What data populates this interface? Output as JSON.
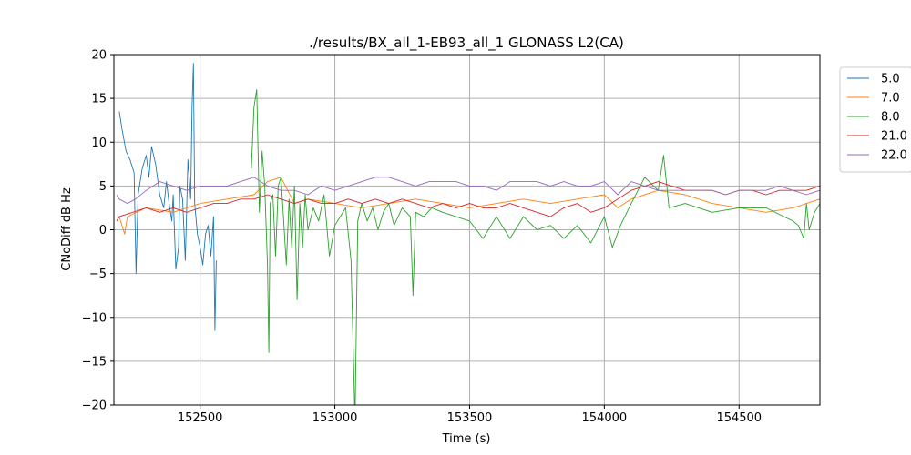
{
  "chart_data": {
    "type": "line",
    "title": "./results/BX_all_1-EB93_all_1 GLONASS L2(CA)",
    "xlabel": "Time (s)",
    "ylabel": "CNoDiff dB Hz",
    "xlim": [
      152180,
      154800
    ],
    "ylim": [
      -20,
      20
    ],
    "x_ticks": [
      152500,
      153000,
      153500,
      154000,
      154500
    ],
    "y_ticks": [
      -20,
      -15,
      -10,
      -5,
      0,
      5,
      10,
      15,
      20
    ],
    "x_tick_labels": [
      "152500",
      "153000",
      "153500",
      "154000",
      "154500"
    ],
    "y_tick_labels": [
      "−20",
      "−15",
      "−10",
      "−5",
      "0",
      "5",
      "10",
      "15",
      "20"
    ],
    "grid": true,
    "legend_position": "outside-top-right",
    "series": [
      {
        "name": "5.0",
        "color": "#1f77b4",
        "x": [
          152200,
          152210,
          152225,
          152240,
          152255,
          152262,
          152270,
          152285,
          152300,
          152310,
          152320,
          152335,
          152350,
          152365,
          152375,
          152385,
          152395,
          152400,
          152410,
          152420,
          152425,
          152435,
          152445,
          152455,
          152465,
          152470,
          152475,
          152480,
          152490,
          152500,
          152510,
          152520,
          152530,
          152540,
          152550,
          152555,
          152560
        ],
        "y": [
          13.5,
          11.5,
          9.0,
          8.0,
          6.5,
          -5.0,
          4.0,
          7.0,
          8.5,
          6.0,
          9.5,
          7.5,
          4.0,
          2.5,
          5.5,
          3.0,
          1.0,
          4.0,
          -4.5,
          -2.0,
          5.0,
          3.5,
          -3.5,
          8.0,
          3.5,
          14.0,
          19.0,
          3.0,
          -0.5,
          -2.0,
          -4.0,
          -0.5,
          0.5,
          -3.0,
          1.5,
          -11.5,
          -3.5
        ]
      },
      {
        "name": "7.0",
        "color": "#ff7f0e",
        "x": [
          152190,
          152200,
          152210,
          152220,
          152230,
          152300,
          152400,
          152500,
          152600,
          152700,
          152750,
          152800,
          152850,
          152900,
          153000,
          153100,
          153200,
          153300,
          153400,
          153500,
          153600,
          153700,
          153800,
          153900,
          154000,
          154050,
          154100,
          154200,
          154300,
          154400,
          154500,
          154600,
          154700,
          154800
        ],
        "y": [
          1.0,
          1.5,
          0.5,
          -0.5,
          1.5,
          2.5,
          2.0,
          3.0,
          3.5,
          4.0,
          5.5,
          6.0,
          3.0,
          3.5,
          3.0,
          2.5,
          3.0,
          3.5,
          3.0,
          2.5,
          3.0,
          3.5,
          3.0,
          3.5,
          4.0,
          2.5,
          3.5,
          4.5,
          4.0,
          3.0,
          2.5,
          2.0,
          2.5,
          3.5
        ]
      },
      {
        "name": "8.0",
        "color": "#2ca02c",
        "x": [
          152690,
          152700,
          152710,
          152720,
          152730,
          152740,
          152750,
          152755,
          152760,
          152770,
          152780,
          152790,
          152800,
          152810,
          152820,
          152830,
          152840,
          152850,
          152860,
          152870,
          152880,
          152890,
          152900,
          152920,
          152940,
          152960,
          152980,
          153000,
          153020,
          153040,
          153060,
          153075,
          153085,
          153100,
          153120,
          153140,
          153160,
          153180,
          153200,
          153220,
          153250,
          153280,
          153290,
          153300,
          153330,
          153360,
          153400,
          153450,
          153500,
          153550,
          153600,
          153650,
          153700,
          153750,
          153800,
          153850,
          153900,
          153950,
          154000,
          154030,
          154060,
          154100,
          154150,
          154200,
          154220,
          154240,
          154300,
          154400,
          154500,
          154600,
          154700,
          154720,
          154740,
          154750,
          154760,
          154780,
          154800
        ],
        "y": [
          7.0,
          14.0,
          16.0,
          2.0,
          9.0,
          5.0,
          -4.0,
          -14.0,
          3.0,
          4.0,
          -3.0,
          5.0,
          6.0,
          1.0,
          -4.0,
          3.5,
          -2.0,
          5.0,
          -8.0,
          3.0,
          -2.0,
          4.0,
          0.0,
          2.5,
          1.0,
          4.0,
          -3.0,
          0.5,
          1.5,
          2.5,
          -3.5,
          -22.0,
          1.0,
          3.0,
          1.0,
          2.5,
          0.0,
          2.0,
          3.0,
          0.5,
          2.5,
          1.5,
          -7.5,
          2.0,
          1.5,
          2.5,
          2.0,
          1.5,
          1.0,
          -1.0,
          1.5,
          -1.0,
          1.5,
          0.0,
          0.5,
          -1.0,
          0.5,
          -1.5,
          1.5,
          -2.0,
          0.5,
          3.0,
          6.0,
          4.5,
          8.5,
          2.5,
          3.0,
          2.0,
          2.5,
          2.5,
          1.0,
          0.5,
          -1.0,
          3.0,
          0.0,
          2.0,
          3.0
        ]
      },
      {
        "name": "21.0",
        "color": "#d62728",
        "x": [
          152190,
          152200,
          152250,
          152300,
          152350,
          152400,
          152450,
          152500,
          152550,
          152600,
          152650,
          152700,
          152750,
          152800,
          152850,
          152900,
          152950,
          153000,
          153050,
          153100,
          153150,
          153200,
          153250,
          153300,
          153350,
          153400,
          153450,
          153500,
          153550,
          153600,
          153650,
          153700,
          153750,
          153800,
          153850,
          153900,
          153950,
          154000,
          154050,
          154100,
          154150,
          154200,
          154250,
          154300,
          154350,
          154400,
          154450,
          154500,
          154550,
          154600,
          154650,
          154700,
          154750,
          154800
        ],
        "y": [
          1.0,
          1.5,
          2.0,
          2.5,
          2.0,
          2.5,
          2.0,
          2.5,
          3.0,
          3.0,
          3.5,
          3.5,
          4.0,
          3.5,
          3.0,
          3.5,
          3.0,
          3.0,
          3.5,
          3.0,
          3.5,
          3.0,
          3.5,
          3.0,
          2.5,
          3.0,
          2.5,
          3.0,
          2.5,
          2.5,
          3.0,
          2.5,
          2.0,
          1.5,
          2.5,
          3.0,
          2.0,
          2.5,
          3.5,
          4.5,
          5.0,
          5.5,
          5.0,
          4.5,
          4.5,
          4.5,
          4.0,
          4.5,
          4.5,
          4.0,
          4.5,
          4.5,
          4.5,
          5.0
        ]
      },
      {
        "name": "22.0",
        "color": "#9467bd",
        "x": [
          152190,
          152200,
          152230,
          152260,
          152300,
          152350,
          152400,
          152450,
          152500,
          152550,
          152600,
          152650,
          152700,
          152750,
          152800,
          152850,
          152900,
          152950,
          153000,
          153050,
          153100,
          153150,
          153200,
          153250,
          153300,
          153350,
          153400,
          153450,
          153500,
          153550,
          153600,
          153650,
          153700,
          153750,
          153800,
          153850,
          153900,
          153950,
          154000,
          154050,
          154100,
          154150,
          154200,
          154250,
          154300,
          154350,
          154400,
          154450,
          154500,
          154550,
          154600,
          154650,
          154700,
          154750,
          154800
        ],
        "y": [
          4.0,
          3.5,
          3.0,
          3.5,
          4.5,
          5.5,
          5.0,
          4.5,
          5.0,
          5.0,
          5.0,
          5.5,
          6.0,
          5.0,
          4.5,
          4.5,
          4.0,
          5.0,
          4.5,
          5.0,
          5.5,
          6.0,
          6.0,
          5.5,
          5.0,
          5.5,
          5.5,
          5.5,
          5.0,
          5.0,
          4.5,
          5.5,
          5.5,
          5.5,
          5.0,
          5.5,
          5.0,
          5.0,
          5.5,
          4.0,
          5.5,
          5.0,
          4.5,
          4.5,
          4.5,
          4.5,
          4.5,
          4.0,
          4.5,
          4.5,
          4.5,
          5.0,
          4.5,
          4.0,
          4.5
        ]
      }
    ]
  }
}
